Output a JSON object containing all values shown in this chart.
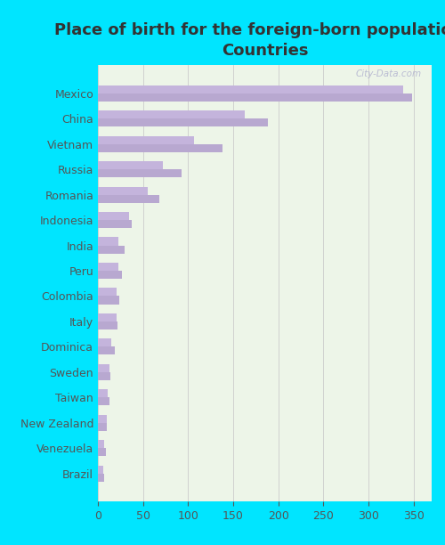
{
  "title": "Place of birth for the foreign-born population -\nCountries",
  "countries": [
    "Mexico",
    "China",
    "Vietnam",
    "Russia",
    "Romania",
    "Indonesia",
    "India",
    "Peru",
    "Colombia",
    "Italy",
    "Dominica",
    "Sweden",
    "Taiwan",
    "New Zealand",
    "Venezuela",
    "Brazil"
  ],
  "bar1_values": [
    348,
    188,
    138,
    93,
    68,
    37,
    30,
    27,
    24,
    22,
    19,
    14,
    13,
    10,
    9,
    7
  ],
  "bar2_values": [
    338,
    163,
    107,
    72,
    55,
    35,
    23,
    23,
    21,
    21,
    15,
    13,
    11,
    10,
    7,
    6
  ],
  "bar1_color": "#b8a8d0",
  "bar2_color": "#c4b4dc",
  "background_color": "#edf5e8",
  "outer_background": "#00e5ff",
  "grid_color": "#cccccc",
  "text_color": "#555555",
  "title_color": "#333333",
  "xlim": [
    0,
    370
  ],
  "xticks": [
    0,
    50,
    100,
    150,
    200,
    250,
    300,
    350
  ],
  "watermark": "City-Data.com",
  "bar_height": 0.32,
  "title_fontsize": 13,
  "tick_fontsize": 9,
  "label_fontsize": 9
}
